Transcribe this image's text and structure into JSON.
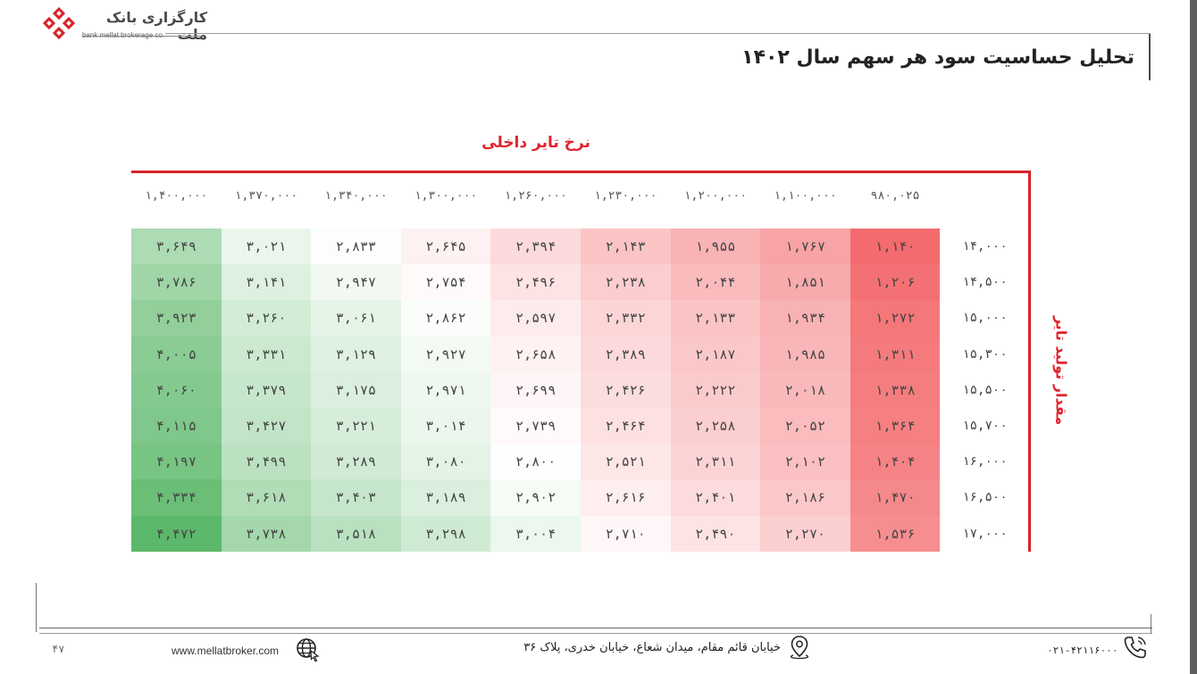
{
  "header": {
    "brand_fa": "کارگزاری بانک ملت",
    "brand_en": "bank mellat brokerage co.",
    "title": "تحلیل حساسیت سود هر سهم سال ۱۴۰۲"
  },
  "table": {
    "col_axis_label": "نرخ تایر داخلی",
    "row_axis_label": "مقدار تولید تایر",
    "columns": [
      "۱,۴۰۰,۰۰۰",
      "۱,۳۷۰,۰۰۰",
      "۱,۳۴۰,۰۰۰",
      "۱,۳۰۰,۰۰۰",
      "۱,۲۶۰,۰۰۰",
      "۱,۲۳۰,۰۰۰",
      "۱,۲۰۰,۰۰۰",
      "۱,۱۰۰,۰۰۰",
      "۹۸۰,۰۲۵"
    ],
    "rows": [
      "۱۴,۰۰۰",
      "۱۴,۵۰۰",
      "۱۵,۰۰۰",
      "۱۵,۳۰۰",
      "۱۵,۵۰۰",
      "۱۵,۷۰۰",
      "۱۶,۰۰۰",
      "۱۶,۵۰۰",
      "۱۷,۰۰۰"
    ],
    "cells": [
      [
        "۳,۶۴۹",
        "۳,۰۲۱",
        "۲,۸۳۳",
        "۲,۶۴۵",
        "۲,۳۹۴",
        "۲,۱۴۳",
        "۱,۹۵۵",
        "۱,۷۶۷",
        "۱,۱۴۰"
      ],
      [
        "۳,۷۸۶",
        "۳,۱۴۱",
        "۲,۹۴۷",
        "۲,۷۵۴",
        "۲,۴۹۶",
        "۲,۲۳۸",
        "۲,۰۴۴",
        "۱,۸۵۱",
        "۱,۲۰۶"
      ],
      [
        "۳,۹۲۳",
        "۳,۲۶۰",
        "۳,۰۶۱",
        "۲,۸۶۲",
        "۲,۵۹۷",
        "۲,۳۳۲",
        "۲,۱۳۳",
        "۱,۹۳۴",
        "۱,۲۷۲"
      ],
      [
        "۴,۰۰۵",
        "۳,۳۳۱",
        "۳,۱۲۹",
        "۲,۹۲۷",
        "۲,۶۵۸",
        "۲,۳۸۹",
        "۲,۱۸۷",
        "۱,۹۸۵",
        "۱,۳۱۱"
      ],
      [
        "۴,۰۶۰",
        "۳,۳۷۹",
        "۳,۱۷۵",
        "۲,۹۷۱",
        "۲,۶۹۹",
        "۲,۴۲۶",
        "۲,۲۲۲",
        "۲,۰۱۸",
        "۱,۳۳۸"
      ],
      [
        "۴,۱۱۵",
        "۳,۴۲۷",
        "۳,۲۲۱",
        "۳,۰۱۴",
        "۲,۷۳۹",
        "۲,۴۶۴",
        "۲,۲۵۸",
        "۲,۰۵۲",
        "۱,۳۶۴"
      ],
      [
        "۴,۱۹۷",
        "۳,۴۹۹",
        "۳,۲۸۹",
        "۳,۰۸۰",
        "۲,۸۰۰",
        "۲,۵۲۱",
        "۲,۳۱۱",
        "۲,۱۰۲",
        "۱,۴۰۴"
      ],
      [
        "۴,۳۳۴",
        "۳,۶۱۸",
        "۳,۴۰۳",
        "۳,۱۸۹",
        "۲,۹۰۲",
        "۲,۶۱۶",
        "۲,۴۰۱",
        "۲,۱۸۶",
        "۱,۴۷۰"
      ],
      [
        "۴,۴۷۲",
        "۳,۷۳۸",
        "۳,۵۱۸",
        "۳,۲۹۸",
        "۳,۰۰۴",
        "۲,۷۱۰",
        "۲,۴۹۰",
        "۲,۲۷۰",
        "۱,۵۳۶"
      ]
    ],
    "cell_values": [
      [
        3649,
        3021,
        2833,
        2645,
        2394,
        2143,
        1955,
        1767,
        1140
      ],
      [
        3786,
        3141,
        2947,
        2754,
        2496,
        2238,
        2044,
        1851,
        1206
      ],
      [
        3923,
        3260,
        3061,
        2862,
        2597,
        2332,
        2133,
        1934,
        1272
      ],
      [
        4005,
        3331,
        3129,
        2927,
        2658,
        2389,
        2187,
        1985,
        1311
      ],
      [
        4060,
        3379,
        3175,
        2971,
        2699,
        2426,
        2222,
        2018,
        1338
      ],
      [
        4115,
        3427,
        3221,
        3014,
        2739,
        2464,
        2258,
        2052,
        1364
      ],
      [
        4197,
        3499,
        3289,
        3080,
        2800,
        2521,
        2311,
        2102,
        1404
      ],
      [
        4334,
        3618,
        3403,
        3189,
        2902,
        2616,
        2401,
        2186,
        1470
      ],
      [
        4472,
        3738,
        3518,
        3298,
        3004,
        2710,
        2490,
        2270,
        1536
      ]
    ],
    "heat_colors": {
      "low": "#f36b6e",
      "mid": "#ffffff",
      "high": "#5cb86a"
    }
  },
  "footer": {
    "page_number": "۴۷",
    "website": "www.mellatbroker.com",
    "address": "خیابان قائم مقام، میدان شعاع، خیابان خدری، پلاک ۳۶",
    "phone": "۰۲۱-۴۲۱۱۶۰۰۰"
  },
  "icons": {
    "logo": "bank-mellat-logo",
    "globe": "globe-icon",
    "pin": "location-pin-icon",
    "phone": "phone-icon"
  }
}
